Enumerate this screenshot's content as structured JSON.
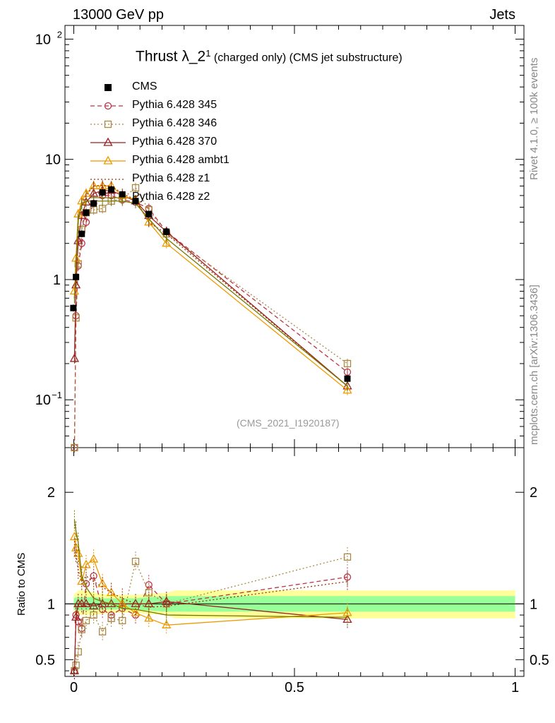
{
  "header": {
    "left": "13000 GeV pp",
    "right": "Jets"
  },
  "side_labels": {
    "rivet": "Rivet 4.1.0, ≥ 100k events",
    "source": "mcplots.cern.ch [arXiv:1306.3436]"
  },
  "analysis_id": "(CMS_2021_I1920187)",
  "title": {
    "main": "Thrust λ_2",
    "superscript": "1",
    "suffix": "(charged only) (CMS jet substructure)"
  },
  "ratio_ylabel": "Ratio to CMS",
  "axis_ticks": {
    "main_y": [
      {
        "v": 100,
        "label": "10",
        "sup": "2"
      },
      {
        "v": 10,
        "label": "10",
        "sup": ""
      },
      {
        "v": 1,
        "label": "1",
        "sup": ""
      },
      {
        "v": 0.1,
        "label": "10",
        "sup": "−1"
      }
    ],
    "ratio_y": [
      {
        "v": 2,
        "label": "2"
      },
      {
        "v": 1,
        "label": "1"
      },
      {
        "v": 0.5,
        "label": "0.5"
      }
    ],
    "x": [
      {
        "v": 0,
        "label": "0"
      },
      {
        "v": 0.5,
        "label": "0.5"
      },
      {
        "v": 1,
        "label": "1"
      }
    ]
  },
  "chart_data": {
    "type": "line",
    "xlim": [
      -0.02,
      1.02
    ],
    "ylim": [
      0.04,
      130
    ],
    "yscale": "log",
    "ratio_ylim": [
      0.35,
      2.4
    ],
    "x": [
      0.0015,
      0.005,
      0.01,
      0.018,
      0.028,
      0.045,
      0.065,
      0.085,
      0.11,
      0.14,
      0.17,
      0.21,
      0.62
    ],
    "data_points": {
      "name": "CMS",
      "x": [
        -0.001,
        0.005,
        0.018,
        0.028,
        0.045,
        0.065,
        0.085,
        0.11,
        0.14,
        0.17,
        0.21,
        0.62
      ],
      "y": [
        0.58,
        1.05,
        2.4,
        3.6,
        4.3,
        5.3,
        5.6,
        5.1,
        4.5,
        3.5,
        2.5,
        0.15
      ]
    },
    "band_x": [
      0.0,
      0.005,
      0.01,
      0.018,
      0.028,
      0.045,
      0.065,
      0.085,
      0.11,
      0.14,
      0.17,
      0.21,
      0.23,
      1.0
    ],
    "band_yellow_lo": [
      0.92,
      0.9,
      0.9,
      0.9,
      0.9,
      0.9,
      0.91,
      0.92,
      0.92,
      0.92,
      0.91,
      0.9,
      0.87,
      0.87
    ],
    "band_yellow_hi": [
      1.08,
      1.1,
      1.12,
      1.12,
      1.12,
      1.1,
      1.09,
      1.08,
      1.08,
      1.08,
      1.09,
      1.1,
      1.12,
      1.12
    ],
    "band_green_lo": [
      0.95,
      0.94,
      0.94,
      0.94,
      0.94,
      0.94,
      0.95,
      0.95,
      0.95,
      0.95,
      0.94,
      0.93,
      0.93,
      0.93
    ],
    "band_green_hi": [
      1.05,
      1.06,
      1.06,
      1.06,
      1.06,
      1.06,
      1.05,
      1.05,
      1.05,
      1.05,
      1.06,
      1.07,
      1.07,
      1.07
    ],
    "series": [
      {
        "name": "Pythia 6.428 345",
        "color": "#bb3344",
        "dash": "6,4",
        "marker": "circle",
        "y": [
          0.04,
          0.5,
          1.3,
          2.0,
          3.0,
          4.3,
          5.0,
          5.0,
          4.6,
          4.4,
          3.9,
          2.5,
          0.17
        ],
        "ratio": [
          0.4,
          0.9,
          0.84,
          0.78,
          1.18,
          1.25,
          0.95,
          0.9,
          0.96,
          0.9,
          1.17,
          1.0,
          1.24
        ]
      },
      {
        "name": "Pythia 6.428 346",
        "color": "#aa8844",
        "dash": "2,3",
        "marker": "square",
        "y": [
          0.04,
          0.48,
          1.35,
          2.6,
          3.6,
          3.8,
          3.9,
          4.5,
          4.7,
          5.8,
          3.8,
          2.4,
          0.2
        ],
        "ratio": [
          0.4,
          0.45,
          0.57,
          0.77,
          0.85,
          0.9,
          0.75,
          0.87,
          0.85,
          1.38,
          1.1,
          1.0,
          1.42
        ]
      },
      {
        "name": "Pythia 6.428 370",
        "color": "#992222",
        "dash": "",
        "marker": "triangle",
        "y": [
          0.22,
          0.9,
          2.1,
          3.4,
          4.4,
          5.2,
          5.5,
          5.5,
          5.0,
          4.5,
          3.4,
          2.5,
          0.13
        ],
        "ratio": [
          0.4,
          0.88,
          1.0,
          1.0,
          1.0,
          0.98,
          1.0,
          1.0,
          1.0,
          1.0,
          1.0,
          1.02,
          0.86
        ]
      },
      {
        "name": "Pythia 6.428 ambt1",
        "color": "#ee9900",
        "dash": "",
        "marker": "triangle",
        "y": [
          0.8,
          1.5,
          3.5,
          4.5,
          5.2,
          6.0,
          6.0,
          6.0,
          5.0,
          4.6,
          3.0,
          2.0,
          0.12
        ],
        "ratio": [
          1.6,
          1.5,
          1.45,
          1.2,
          1.35,
          1.4,
          1.18,
          1.1,
          1.0,
          0.92,
          0.87,
          0.81,
          0.92
        ]
      },
      {
        "name": "Pythia 6.428 z1",
        "color": "#993300",
        "dash": "2,3",
        "marker": "none",
        "y": [
          0.7,
          1.4,
          3.2,
          4.3,
          5.0,
          6.0,
          6.1,
          6.0,
          5.2,
          4.6,
          3.0,
          2.4,
          0.13
        ],
        "ratio": [
          1.5,
          1.45,
          1.3,
          1.2,
          1.25,
          1.2,
          1.15,
          1.1,
          1.05,
          1.0,
          0.97,
          0.98,
          1.2
        ]
      },
      {
        "name": "Pythia 6.428 z2",
        "color": "#777700",
        "dash": "",
        "marker": "none",
        "y": [
          0.7,
          1.3,
          3.1,
          4.2,
          4.5,
          4.5,
          4.5,
          4.5,
          4.5,
          4.3,
          3.2,
          2.2,
          0.13
        ],
        "ratio": [
          1.75,
          1.65,
          1.55,
          1.25,
          1.15,
          1.05,
          1.02,
          1.0,
          0.96,
          0.95,
          0.93,
          0.9,
          0.88
        ]
      }
    ]
  }
}
